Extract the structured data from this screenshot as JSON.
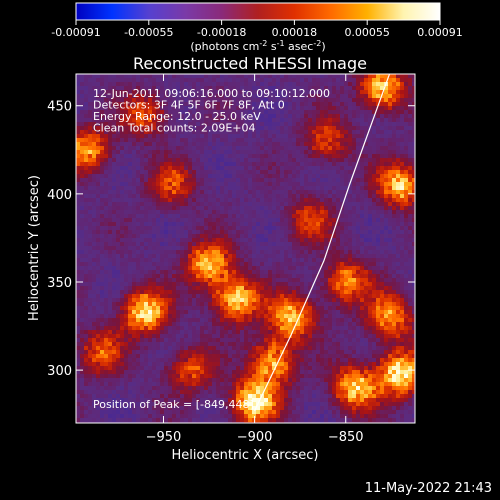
{
  "chart_data": {
    "type": "heatmap",
    "title": "Reconstructed RHESSI Image",
    "xlabel": "Heliocentric X (arcsec)",
    "ylabel": "Heliocentric Y (arcsec)",
    "xlim": [
      -998,
      -812
    ],
    "ylim": [
      270,
      468
    ],
    "xticks": [
      -950,
      -900,
      -850
    ],
    "yticks": [
      300,
      350,
      400,
      450
    ],
    "colorbar": {
      "ticks": [
        "-0.00091",
        "-0.00055",
        "-0.00018",
        "0.00018",
        "0.00055",
        "0.00091"
      ],
      "units_main": "(photons cm",
      "units_exp1": "-2",
      "units_mid": " s",
      "units_exp2": "-1",
      "units_mid2": " asec",
      "units_exp3": "-2",
      "units_end": ")",
      "stops": [
        "#0000c0",
        "#0033ff",
        "#5540d0",
        "#7a3aa8",
        "#8a2a7a",
        "#b02020",
        "#e03000",
        "#ff6a00",
        "#ffb000",
        "#fff4b0",
        "#ffffff"
      ]
    },
    "annotations": [
      "12-Jun-2011 09:06:16.000 to 09:10:12.000",
      "Detectors: 3F 4F 5F 6F 7F 8F, Att 0",
      "Energy Range: 12.0 - 25.0 keV",
      "Clean    Total counts: 2.09E+04"
    ],
    "peak_label": "Position of Peak = [-849,448]",
    "limb": {
      "x": [
        -900,
        -880,
        -862,
        -848,
        -840,
        -826
      ],
      "y": [
        277,
        320,
        362,
        405,
        428,
        468
      ]
    },
    "hotspots": [
      {
        "x": -960,
        "y": 333,
        "s": 0.95
      },
      {
        "x": -925,
        "y": 360,
        "s": 0.85
      },
      {
        "x": -910,
        "y": 340,
        "s": 0.9
      },
      {
        "x": -880,
        "y": 330,
        "s": 0.85
      },
      {
        "x": -900,
        "y": 282,
        "s": 1.0
      },
      {
        "x": -890,
        "y": 305,
        "s": 0.8
      },
      {
        "x": -845,
        "y": 290,
        "s": 0.85
      },
      {
        "x": -820,
        "y": 298,
        "s": 1.0
      },
      {
        "x": -826,
        "y": 330,
        "s": 0.75
      },
      {
        "x": -850,
        "y": 350,
        "s": 0.7
      },
      {
        "x": -830,
        "y": 460,
        "s": 0.9
      },
      {
        "x": -820,
        "y": 405,
        "s": 0.85
      },
      {
        "x": -992,
        "y": 425,
        "s": 0.75
      },
      {
        "x": -960,
        "y": 445,
        "s": 0.55
      },
      {
        "x": -945,
        "y": 405,
        "s": 0.5
      },
      {
        "x": -860,
        "y": 430,
        "s": 0.55
      },
      {
        "x": -870,
        "y": 385,
        "s": 0.5
      },
      {
        "x": -985,
        "y": 310,
        "s": 0.55
      },
      {
        "x": -935,
        "y": 300,
        "s": 0.55
      }
    ]
  },
  "footer": {
    "timestamp": "11-May-2022 21:43"
  }
}
